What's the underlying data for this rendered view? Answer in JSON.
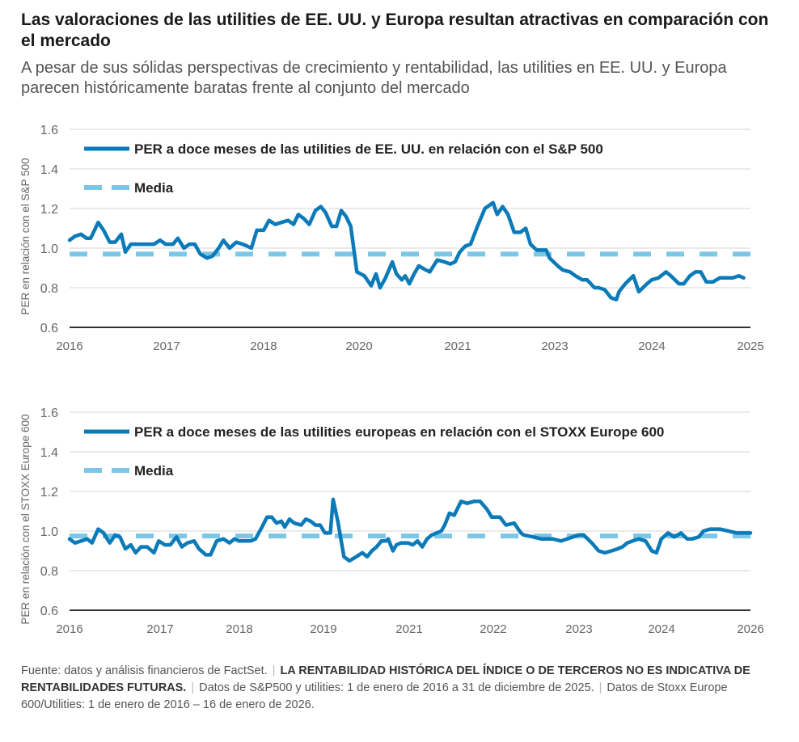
{
  "header": {
    "title": "Las valoraciones de las utilities de EE. UU. y Europa resultan atractivas en comparación con el mercado",
    "subtitle": "A pesar de sus sólidas perspectivas de crecimiento y rentabilidad, las utilities en EE. UU. y Europa parecen históricamente baratas frente al conjunto del mercado"
  },
  "colors": {
    "series": "#0a7ab8",
    "mean": "#7cc6e6",
    "grid": "#dddddd",
    "axis": "#555555"
  },
  "chart_data": [
    {
      "type": "line",
      "ylabel": "PER en relación con el S&P 500",
      "ylim": [
        0.6,
        1.6
      ],
      "yticks": [
        "0.6",
        "0.8",
        "1.0",
        "1.2",
        "1.4",
        "1.6"
      ],
      "xticks": [
        {
          "label": "2016",
          "pos": 0.0
        },
        {
          "label": "2017",
          "pos": 0.1425
        },
        {
          "label": "2018",
          "pos": 0.285
        },
        {
          "label": "2020",
          "pos": 0.4252
        },
        {
          "label": "2021",
          "pos": 0.5701
        },
        {
          "label": "2023",
          "pos": 0.7126
        },
        {
          "label": "2024",
          "pos": 0.8551
        },
        {
          "label": "2025",
          "pos": 1.0
        }
      ],
      "legend": {
        "series": "PER a doce meses de las utilities de EE. UU. en relación con el S&P 500",
        "mean": "Media",
        "placement": "top-left"
      },
      "mean": 0.97,
      "series": [
        {
          "name": "PER a doce meses de las utilities de EE. UU. en relación con el S&P 500",
          "x": [
            0,
            0.008,
            0.017,
            0.025,
            0.031,
            0.042,
            0.05,
            0.059,
            0.067,
            0.076,
            0.082,
            0.09,
            0.1,
            0.112,
            0.124,
            0.133,
            0.141,
            0.152,
            0.159,
            0.168,
            0.176,
            0.184,
            0.192,
            0.202,
            0.21,
            0.219,
            0.226,
            0.235,
            0.245,
            0.254,
            0.261,
            0.267,
            0.275,
            0.285,
            0.293,
            0.302,
            0.311,
            0.321,
            0.329,
            0.336,
            0.344,
            0.352,
            0.361,
            0.369,
            0.376,
            0.385,
            0.392,
            0.399,
            0.406,
            0.413,
            0.422,
            0.433,
            0.443,
            0.45,
            0.456,
            0.464,
            0.474,
            0.48,
            0.488,
            0.493,
            0.499,
            0.506,
            0.513,
            0.523,
            0.529,
            0.54,
            0.551,
            0.559,
            0.566,
            0.573,
            0.581,
            0.589,
            0.599,
            0.61,
            0.622,
            0.628,
            0.636,
            0.644,
            0.653,
            0.662,
            0.67,
            0.677,
            0.686,
            0.7,
            0.705,
            0.717,
            0.724,
            0.735,
            0.743,
            0.753,
            0.76,
            0.771,
            0.777,
            0.786,
            0.795,
            0.803,
            0.807,
            0.816,
            0.828,
            0.836,
            0.848,
            0.855,
            0.865,
            0.876,
            0.883,
            0.895,
            0.902,
            0.911,
            0.919,
            0.927,
            0.935,
            0.945,
            0.955,
            0.965,
            0.974,
            0.983,
            0.99
          ],
          "values": [
            1.04,
            1.06,
            1.07,
            1.05,
            1.05,
            1.13,
            1.09,
            1.03,
            1.03,
            1.07,
            0.98,
            1.02,
            1.02,
            1.02,
            1.02,
            1.04,
            1.02,
            1.02,
            1.05,
            1.0,
            1.02,
            1.02,
            0.97,
            0.95,
            0.96,
            1.0,
            1.04,
            1.0,
            1.03,
            1.02,
            1.01,
            1.0,
            1.09,
            1.09,
            1.14,
            1.12,
            1.13,
            1.14,
            1.12,
            1.17,
            1.15,
            1.12,
            1.19,
            1.21,
            1.18,
            1.11,
            1.11,
            1.19,
            1.16,
            1.11,
            0.88,
            0.86,
            0.81,
            0.87,
            0.8,
            0.85,
            0.93,
            0.87,
            0.84,
            0.86,
            0.82,
            0.87,
            0.91,
            0.89,
            0.88,
            0.94,
            0.93,
            0.92,
            0.93,
            0.98,
            1.01,
            1.02,
            1.11,
            1.2,
            1.23,
            1.17,
            1.21,
            1.17,
            1.08,
            1.08,
            1.1,
            1.02,
            0.99,
            0.99,
            0.95,
            0.91,
            0.89,
            0.88,
            0.86,
            0.84,
            0.84,
            0.8,
            0.8,
            0.79,
            0.75,
            0.74,
            0.78,
            0.82,
            0.86,
            0.78,
            0.82,
            0.84,
            0.85,
            0.88,
            0.86,
            0.82,
            0.82,
            0.86,
            0.88,
            0.88,
            0.83,
            0.83,
            0.85,
            0.85,
            0.85,
            0.86,
            0.85
          ]
        }
      ]
    },
    {
      "type": "line",
      "ylabel": "PER en relación con el STOXX Europe 600",
      "ylim": [
        0.6,
        1.6
      ],
      "yticks": [
        "0.6",
        "0.8",
        "1.0",
        "1.2",
        "1.4",
        "1.6"
      ],
      "xticks": [
        {
          "label": "2016",
          "pos": 0.0
        },
        {
          "label": "2017",
          "pos": 0.133
        },
        {
          "label": "2018",
          "pos": 0.2494
        },
        {
          "label": "2019",
          "pos": 0.3729
        },
        {
          "label": "2021",
          "pos": 0.4988
        },
        {
          "label": "2022",
          "pos": 0.6223
        },
        {
          "label": "2023",
          "pos": 0.7482
        },
        {
          "label": "2024",
          "pos": 0.8694
        },
        {
          "label": "2026",
          "pos": 1.0
        }
      ],
      "legend": {
        "series": "PER a doce meses de las utilities europeas en relación con el STOXX Europe 600",
        "mean": "Media",
        "placement": "top-left"
      },
      "mean": 0.975,
      "series": [
        {
          "name": "PER a doce meses de las utilities europeas en relación con el STOXX Europe 600",
          "x": [
            0,
            0.008,
            0.017,
            0.026,
            0.033,
            0.042,
            0.05,
            0.059,
            0.067,
            0.074,
            0.082,
            0.09,
            0.097,
            0.105,
            0.114,
            0.124,
            0.131,
            0.14,
            0.148,
            0.157,
            0.165,
            0.173,
            0.183,
            0.19,
            0.2,
            0.207,
            0.216,
            0.226,
            0.235,
            0.242,
            0.249,
            0.257,
            0.266,
            0.273,
            0.281,
            0.29,
            0.297,
            0.304,
            0.311,
            0.316,
            0.323,
            0.33,
            0.34,
            0.347,
            0.354,
            0.361,
            0.368,
            0.375,
            0.383,
            0.387,
            0.394,
            0.403,
            0.411,
            0.421,
            0.43,
            0.437,
            0.444,
            0.451,
            0.458,
            0.465,
            0.468,
            0.475,
            0.48,
            0.487,
            0.497,
            0.504,
            0.511,
            0.518,
            0.525,
            0.532,
            0.539,
            0.546,
            0.551,
            0.558,
            0.565,
            0.575,
            0.584,
            0.594,
            0.603,
            0.613,
            0.62,
            0.632,
            0.641,
            0.653,
            0.663,
            0.667,
            0.681,
            0.693,
            0.71,
            0.722,
            0.748,
            0.755,
            0.767,
            0.777,
            0.786,
            0.796,
            0.805,
            0.812,
            0.819,
            0.827,
            0.836,
            0.846,
            0.855,
            0.862,
            0.869,
            0.879,
            0.888,
            0.898,
            0.907,
            0.914,
            0.924,
            0.931,
            0.941,
            0.955,
            0.98,
            1.0
          ],
          "values": [
            0.96,
            0.94,
            0.95,
            0.96,
            0.94,
            1.01,
            0.99,
            0.94,
            0.98,
            0.97,
            0.91,
            0.93,
            0.89,
            0.92,
            0.92,
            0.89,
            0.95,
            0.93,
            0.93,
            0.97,
            0.92,
            0.94,
            0.95,
            0.91,
            0.88,
            0.88,
            0.95,
            0.96,
            0.94,
            0.96,
            0.95,
            0.95,
            0.95,
            0.96,
            1.01,
            1.07,
            1.07,
            1.04,
            1.05,
            1.02,
            1.06,
            1.04,
            1.03,
            1.06,
            1.05,
            1.03,
            1.03,
            0.99,
            0.99,
            1.16,
            1.05,
            0.87,
            0.85,
            0.87,
            0.89,
            0.87,
            0.9,
            0.92,
            0.95,
            0.95,
            0.96,
            0.9,
            0.93,
            0.94,
            0.94,
            0.93,
            0.95,
            0.92,
            0.96,
            0.98,
            0.99,
            1.0,
            1.03,
            1.09,
            1.08,
            1.15,
            1.14,
            1.15,
            1.15,
            1.11,
            1.07,
            1.07,
            1.03,
            1.04,
            0.99,
            0.98,
            0.97,
            0.96,
            0.96,
            0.95,
            0.98,
            0.98,
            0.94,
            0.9,
            0.89,
            0.9,
            0.91,
            0.92,
            0.94,
            0.95,
            0.96,
            0.95,
            0.9,
            0.89,
            0.96,
            0.99,
            0.97,
            0.99,
            0.96,
            0.96,
            0.97,
            1.0,
            1.01,
            1.01,
            0.99,
            0.99
          ]
        }
      ]
    }
  ],
  "footer": {
    "source": "Fuente: datos y análisis financieros de FactSet.",
    "disclaimer": "LA RENTABILIDAD HISTÓRICA DEL ÍNDICE O DE TERCEROS NO ES INDICATIVA DE RENTABILIDADES FUTURAS.",
    "note1": "Datos de S&P500 y utilities: 1 de enero de 2016 a 31 de diciembre de 2025.",
    "note2": "Datos de Stoxx Europe 600/Utilities: 1 de enero de 2016 – 16 de enero de 2026.",
    "separator": "|"
  }
}
